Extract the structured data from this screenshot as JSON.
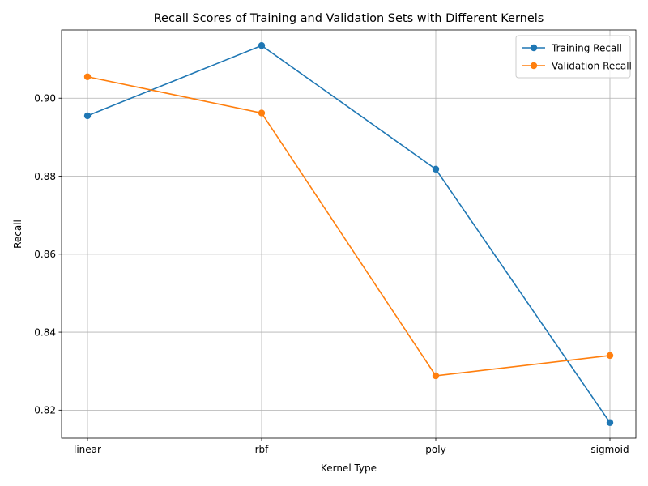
{
  "chart_data": {
    "type": "line",
    "title": "Recall Scores of Training and Validation Sets with Different Kernels",
    "xlabel": "Kernel Type",
    "ylabel": "Recall",
    "categories": [
      "linear",
      "rbf",
      "poly",
      "sigmoid"
    ],
    "ylim": [
      0.8128,
      0.9175
    ],
    "yticks": [
      0.82,
      0.84,
      0.86,
      0.88,
      0.9
    ],
    "ytick_labels": [
      "0.82",
      "0.84",
      "0.86",
      "0.88",
      "0.90"
    ],
    "grid": true,
    "legend_position": "top-right",
    "series": [
      {
        "name": "Training Recall",
        "color": "#1f77b4",
        "marker": "circle",
        "values": [
          0.8955,
          0.9135,
          0.8818,
          0.8168
        ]
      },
      {
        "name": "Validation Recall",
        "color": "#ff7f0e",
        "marker": "circle",
        "values": [
          0.9055,
          0.8962,
          0.8288,
          0.834
        ]
      }
    ]
  }
}
